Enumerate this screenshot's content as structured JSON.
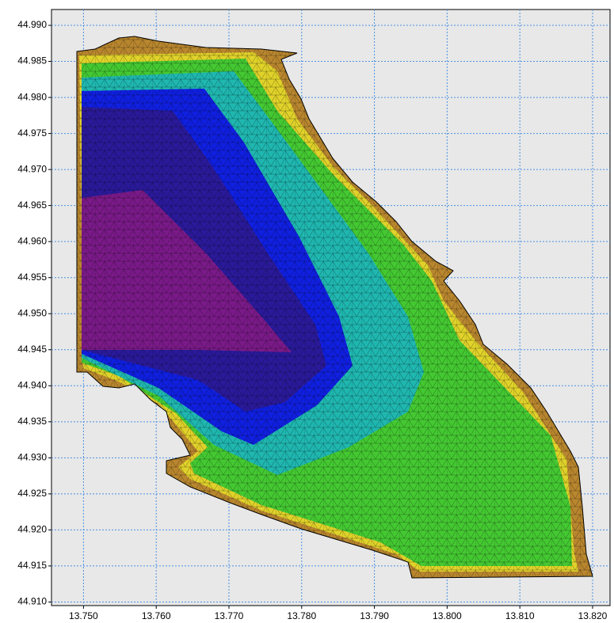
{
  "chart_data": {
    "type": "mesh",
    "xlim": [
      13.7456,
      13.8224
    ],
    "ylim": [
      44.9095,
      44.9922
    ],
    "xticks": [
      {
        "value": 13.75,
        "label": "13.750"
      },
      {
        "value": 13.76,
        "label": "13.760"
      },
      {
        "value": 13.77,
        "label": "13.770"
      },
      {
        "value": 13.78,
        "label": "13.780"
      },
      {
        "value": 13.79,
        "label": "13.790"
      },
      {
        "value": 13.8,
        "label": "13.800"
      },
      {
        "value": 13.81,
        "label": "13.810"
      },
      {
        "value": 13.82,
        "label": "13.820"
      }
    ],
    "yticks": [
      {
        "value": 44.91,
        "label": "44.910"
      },
      {
        "value": 44.915,
        "label": "44.915"
      },
      {
        "value": 44.92,
        "label": "44.920"
      },
      {
        "value": 44.925,
        "label": "44.925"
      },
      {
        "value": 44.93,
        "label": "44.930"
      },
      {
        "value": 44.935,
        "label": "44.935"
      },
      {
        "value": 44.94,
        "label": "44.940"
      },
      {
        "value": 44.945,
        "label": "44.945"
      },
      {
        "value": 44.95,
        "label": "44.950"
      },
      {
        "value": 44.955,
        "label": "44.955"
      },
      {
        "value": 44.96,
        "label": "44.960"
      },
      {
        "value": 44.965,
        "label": "44.965"
      },
      {
        "value": 44.97,
        "label": "44.970"
      },
      {
        "value": 44.975,
        "label": "44.975"
      },
      {
        "value": 44.98,
        "label": "44.980"
      },
      {
        "value": 44.985,
        "label": "44.985"
      },
      {
        "value": 44.99,
        "label": "44.990"
      }
    ],
    "grid": true
  }
}
